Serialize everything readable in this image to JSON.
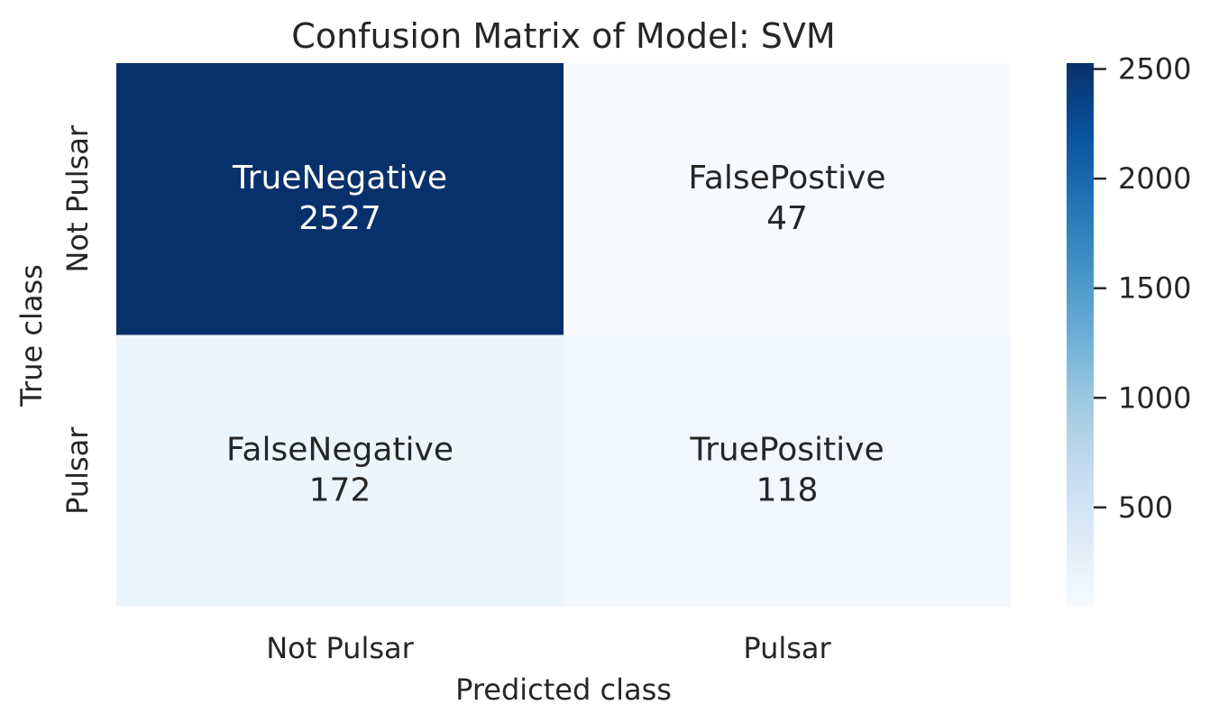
{
  "chart_data": {
    "type": "heatmap",
    "title": "Confusion Matrix of Model: SVM",
    "xlabel": "Predicted class",
    "ylabel": "True class",
    "x_categories": [
      "Not Pulsar",
      "Pulsar"
    ],
    "y_categories": [
      "Not Pulsar",
      "Pulsar"
    ],
    "cells": [
      {
        "row": 0,
        "col": 0,
        "label": "TrueNegative",
        "value": 2527
      },
      {
        "row": 0,
        "col": 1,
        "label": "FalsePostive",
        "value": 47
      },
      {
        "row": 1,
        "col": 0,
        "label": "FalseNegative",
        "value": 172
      },
      {
        "row": 1,
        "col": 1,
        "label": "TruePositive",
        "value": 118
      }
    ],
    "colorbar": {
      "min": 47,
      "max": 2527,
      "ticks": [
        500,
        1000,
        1500,
        2000,
        2500
      ],
      "colormap": "Blues"
    },
    "grid": false
  }
}
